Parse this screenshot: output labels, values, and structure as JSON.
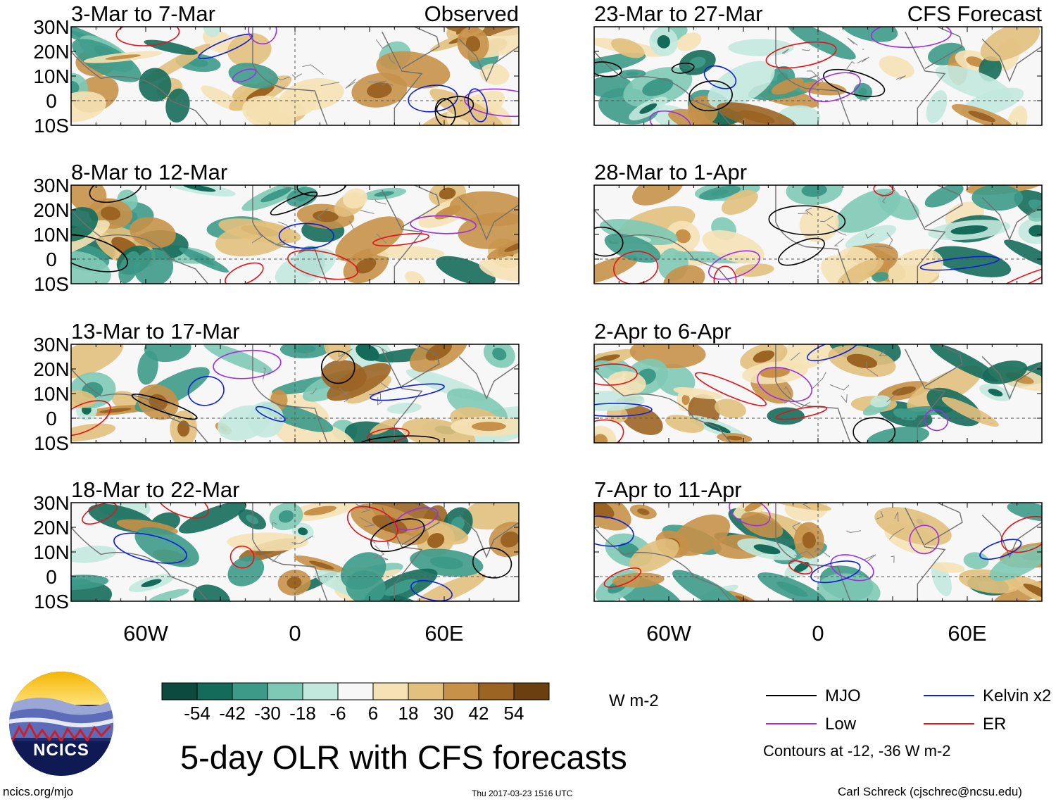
{
  "chart_data": {
    "type": "heatmap",
    "title": "5-day OLR with CFS forecasts",
    "units": "W m-2",
    "lat_ticks": [
      "30N",
      "20N",
      "10N",
      "0",
      "10S"
    ],
    "lat_values": [
      30,
      20,
      10,
      0,
      -10
    ],
    "lon_ticks": [
      "60W",
      "0",
      "60E"
    ],
    "lon_values": [
      -60,
      0,
      60
    ],
    "lon_range": [
      -90,
      90
    ],
    "lat_range": [
      -10,
      30
    ],
    "columns": [
      {
        "header": "Observed",
        "panels": [
          "3-Mar to 7-Mar",
          "8-Mar to 12-Mar",
          "13-Mar to 17-Mar",
          "18-Mar to 22-Mar"
        ]
      },
      {
        "header": "CFS Forecast",
        "panels": [
          "23-Mar to 27-Mar",
          "28-Mar to 1-Apr",
          "2-Apr to 6-Apr",
          "7-Apr to 11-Apr"
        ]
      }
    ],
    "colorbar": {
      "labels": [
        "-54",
        "-42",
        "-30",
        "-18",
        "-6",
        "6",
        "18",
        "30",
        "42",
        "54"
      ],
      "colors": [
        "#0b4a3c",
        "#146b5a",
        "#3d9a88",
        "#7ec9b5",
        "#c2e8dd",
        "#f7f7f7",
        "#f5e2b5",
        "#e2c07d",
        "#c79149",
        "#9c6423",
        "#6b3f0e"
      ]
    },
    "legend": {
      "items": [
        {
          "label": "MJO",
          "color": "#000000"
        },
        {
          "label": "Kelvin x2",
          "color": "#0b1fd6"
        },
        {
          "label": "Low",
          "color": "#9b30e0"
        },
        {
          "label": "ER",
          "color": "#e0141a"
        }
      ],
      "note": "Contours at -12, -36 W m-2"
    }
  },
  "footer": {
    "left": "ncics.org/mjo",
    "center": "Thu 2017-03-23 1516 UTC",
    "right": "Carl Schreck (cjschrec@ncsu.edu)",
    "logo_text": "NCICS"
  }
}
